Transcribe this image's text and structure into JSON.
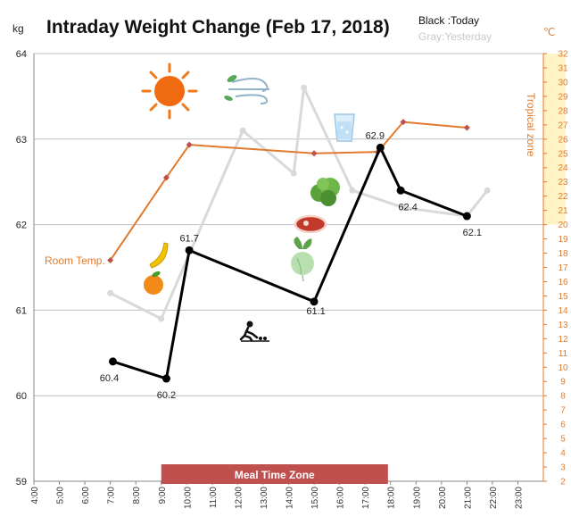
{
  "chart_data": {
    "type": "line",
    "title": "Intraday Weight Change (Feb 17, 2018)",
    "legend": {
      "today": "Black :Today",
      "yesterday": "Gray:Yesterday"
    },
    "y_unit": "kg",
    "y2_unit": "℃",
    "ylim": [
      59,
      64
    ],
    "yticks": [
      59,
      60,
      61,
      62,
      63,
      64
    ],
    "y2lim": [
      2,
      32
    ],
    "y2ticks": [
      2,
      3,
      4,
      5,
      6,
      7,
      8,
      9,
      10,
      11,
      12,
      13,
      14,
      15,
      16,
      17,
      18,
      19,
      20,
      21,
      22,
      23,
      24,
      25,
      26,
      27,
      28,
      29,
      30,
      31,
      32
    ],
    "xlim": [
      4,
      24
    ],
    "xticks": [
      "4:00",
      "5:00",
      "6:00",
      "7:00",
      "8:00",
      "9:00",
      "10:00",
      "11:00",
      "12:00",
      "13:00",
      "14:00",
      "15:00",
      "16:00",
      "17:00",
      "18:00",
      "19:00",
      "20:00",
      "21:00",
      "22:00",
      "23:00"
    ],
    "grid": true,
    "series": [
      {
        "name": "Today",
        "color": "#000000",
        "points": [
          {
            "x": 7.1,
            "y": 60.4,
            "label": "60.4"
          },
          {
            "x": 9.2,
            "y": 60.2,
            "label": "60.2"
          },
          {
            "x": 10.1,
            "y": 61.7,
            "label": "61.7"
          },
          {
            "x": 15.0,
            "y": 61.1,
            "label": "61.1"
          },
          {
            "x": 17.6,
            "y": 62.9,
            "label": "62.9"
          },
          {
            "x": 18.4,
            "y": 62.4,
            "label": "62.4"
          },
          {
            "x": 21.0,
            "y": 62.1,
            "label": "62.1"
          }
        ]
      },
      {
        "name": "Yesterday",
        "color": "#d9d9d9",
        "points": [
          {
            "x": 7.0,
            "y": 61.2
          },
          {
            "x": 9.0,
            "y": 60.9
          },
          {
            "x": 12.2,
            "y": 63.1
          },
          {
            "x": 14.2,
            "y": 62.6
          },
          {
            "x": 14.6,
            "y": 63.6
          },
          {
            "x": 16.5,
            "y": 62.4
          },
          {
            "x": 18.5,
            "y": 62.2
          },
          {
            "x": 21.0,
            "y": 62.1
          },
          {
            "x": 21.8,
            "y": 62.4
          }
        ]
      },
      {
        "name": "Temperature",
        "color": "#e07b2e",
        "axis": "right",
        "points": [
          {
            "x": 7.0,
            "y": 17.5
          },
          {
            "x": 9.2,
            "y": 23.3
          },
          {
            "x": 10.1,
            "y": 25.6
          },
          {
            "x": 15.0,
            "y": 25.0
          },
          {
            "x": 17.5,
            "y": 25.1
          },
          {
            "x": 18.5,
            "y": 27.2
          },
          {
            "x": 21.0,
            "y": 26.8
          }
        ]
      }
    ],
    "annotations": {
      "room_temp": "Room Temp.",
      "tropical_zone": "Tropical zone",
      "tropical_zone_range": [
        20,
        32
      ],
      "meal_time_zone": "Meal Time Zone",
      "meal_time_range": [
        9.0,
        17.9
      ]
    },
    "icons": [
      "sun-icon",
      "wind-icon",
      "water-glass-icon",
      "lettuce-icon",
      "meat-icon",
      "turnip-icon",
      "banana-icon",
      "orange-icon",
      "gardening-person-icon"
    ]
  }
}
